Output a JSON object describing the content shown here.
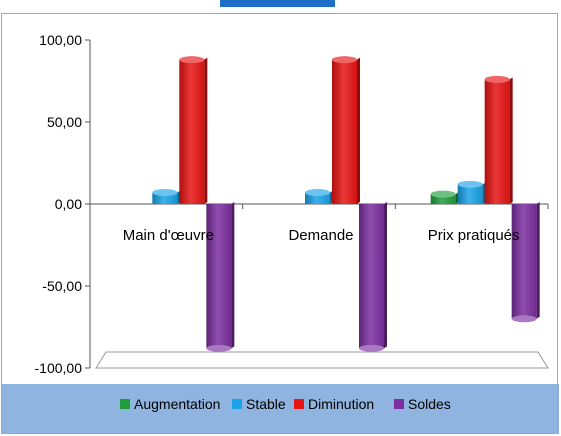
{
  "chart_data": {
    "type": "bar",
    "style": "3d-clustered-column",
    "categories": [
      "Main d'œuvre",
      "Demande",
      "Prix pratiqués"
    ],
    "series": [
      {
        "name": "Augmentation",
        "color": "#1f9e3c",
        "values": [
          0,
          0,
          6
        ]
      },
      {
        "name": "Stable",
        "color": "#1aa3e8",
        "values": [
          7,
          7,
          12
        ]
      },
      {
        "name": "Diminution",
        "color": "#e81414",
        "values": [
          88,
          88,
          76
        ]
      },
      {
        "name": "Soldes",
        "color": "#7b2fa0",
        "values": [
          -88,
          -88,
          -70
        ]
      }
    ],
    "title": "",
    "xlabel": "",
    "ylabel": "",
    "ylim": [
      -100,
      100
    ],
    "yticks": [
      "100,00",
      "50,00",
      "0,00",
      "-50,00",
      "-100,00"
    ],
    "ytick_values": [
      100,
      50,
      0,
      -50,
      -100
    ],
    "legend_position": "bottom",
    "grid": false,
    "colors": {
      "background": "#ffffff",
      "legend_band": "#8fb4df",
      "frame_border": "#9aa9c2",
      "top_accent": "#1f6fc6"
    }
  }
}
